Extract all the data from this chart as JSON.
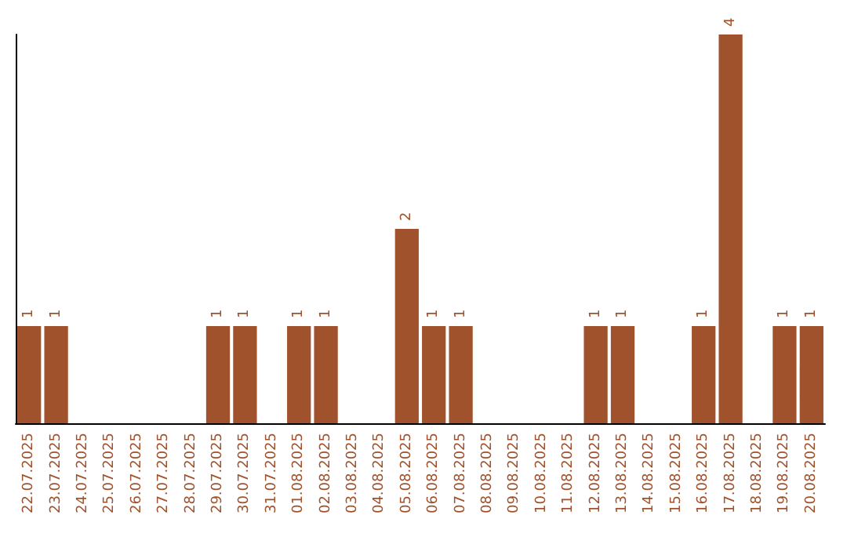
{
  "chart_data": {
    "type": "bar",
    "categories": [
      "22.07.2025",
      "23.07.2025",
      "24.07.2025",
      "25.07.2025",
      "26.07.2025",
      "27.07.2025",
      "28.07.2025",
      "29.07.2025",
      "30.07.2025",
      "31.07.2025",
      "01.08.2025",
      "02.08.2025",
      "03.08.2025",
      "04.08.2025",
      "05.08.2025",
      "06.08.2025",
      "07.08.2025",
      "08.08.2025",
      "09.08.2025",
      "10.08.2025",
      "11.08.2025",
      "12.08.2025",
      "13.08.2025",
      "14.08.2025",
      "15.08.2025",
      "16.08.2025",
      "17.08.2025",
      "18.08.2025",
      "19.08.2025",
      "20.08.2025"
    ],
    "values": [
      1,
      1,
      0,
      0,
      0,
      0,
      0,
      1,
      1,
      0,
      1,
      1,
      0,
      0,
      2,
      1,
      1,
      0,
      0,
      0,
      0,
      1,
      1,
      0,
      0,
      1,
      4,
      0,
      1,
      1
    ],
    "value_labels": [
      "1",
      "1",
      null,
      null,
      null,
      null,
      null,
      "1",
      "1",
      null,
      "1",
      "1",
      null,
      null,
      "2",
      "1",
      "1",
      null,
      null,
      null,
      null,
      "1",
      "1",
      null,
      null,
      "1",
      "4",
      null,
      "1",
      "1"
    ],
    "color": "#a0522d"
  }
}
